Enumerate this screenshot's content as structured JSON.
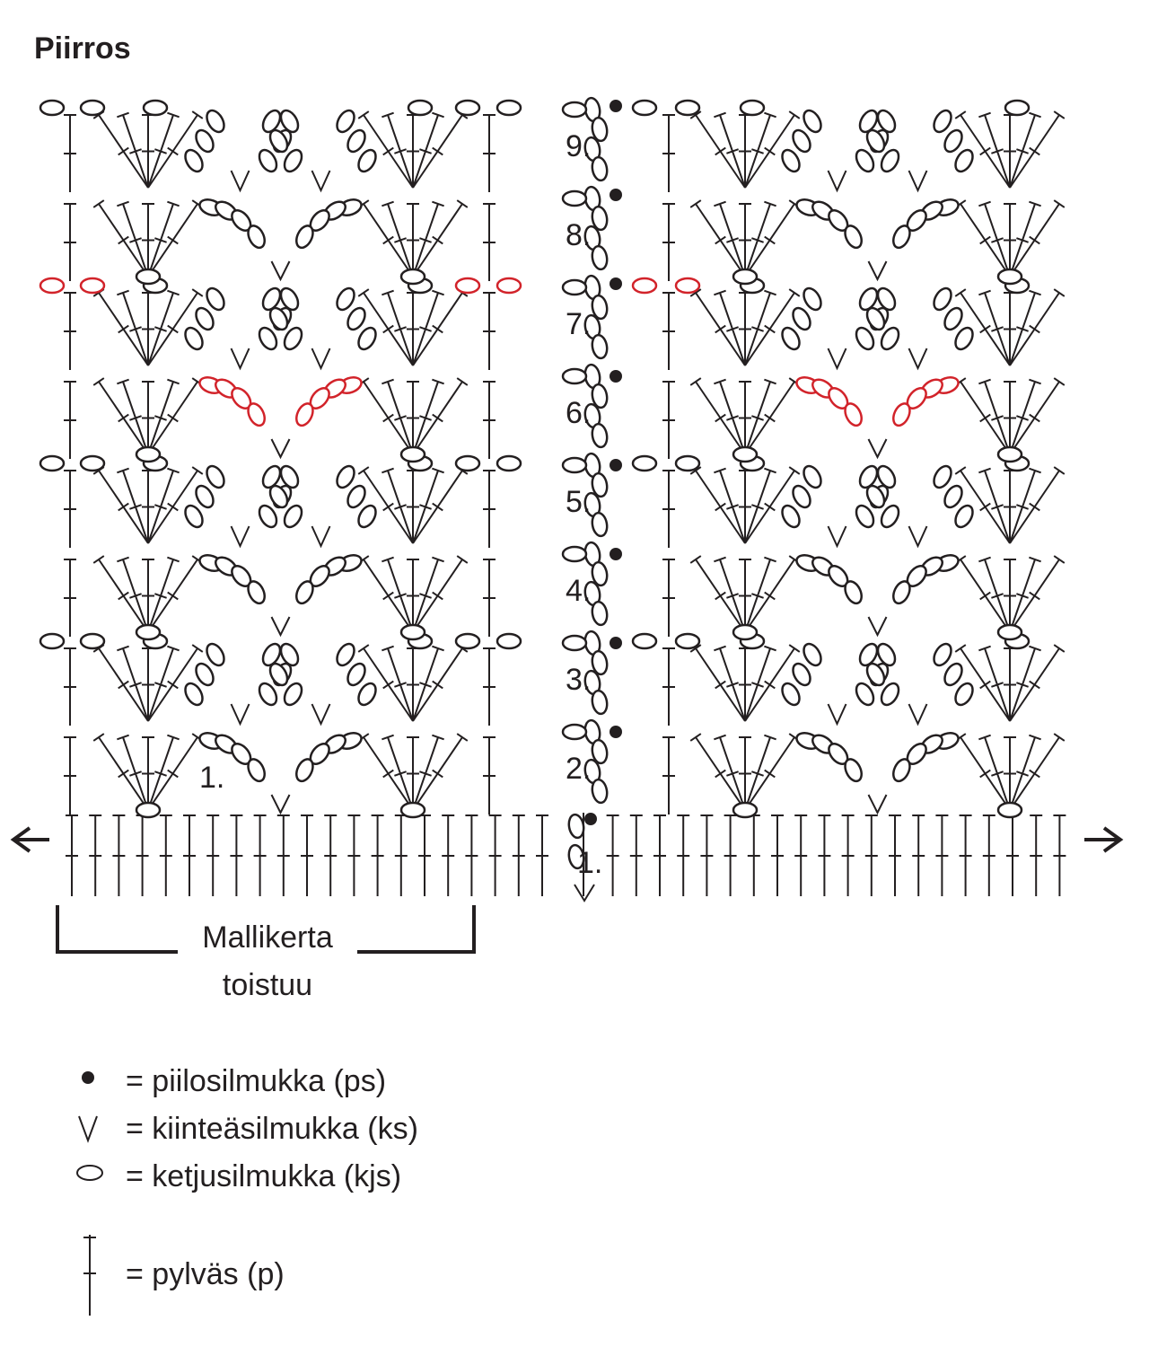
{
  "title": "Piirros",
  "row_labels": [
    "1.",
    "2.",
    "3.",
    "4.",
    "5.",
    "6.",
    "7.",
    "8.",
    "9."
  ],
  "first_row_label": "1.",
  "repeat_label": [
    "Mallikerta",
    "toistuu"
  ],
  "legend": [
    "= piilosilmukka (ps)",
    "= kiinteäsilmukka (ks)",
    "= ketjusilmukka (kjs)",
    "= pylväs (p)"
  ]
}
